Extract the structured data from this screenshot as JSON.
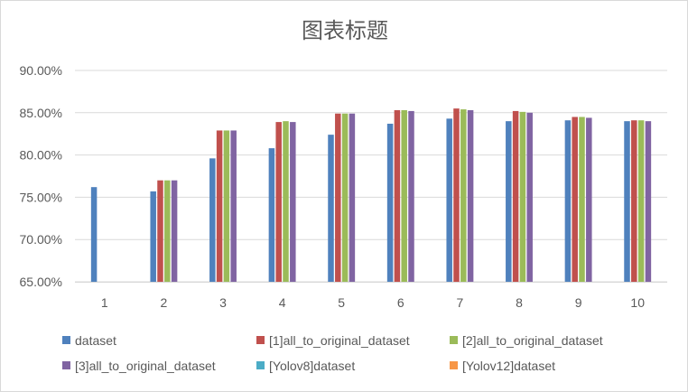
{
  "chart_data": {
    "type": "bar",
    "title": "图表标题",
    "xlabel": "",
    "ylabel": "",
    "categories": [
      "1",
      "2",
      "3",
      "4",
      "5",
      "6",
      "7",
      "8",
      "9",
      "10"
    ],
    "ylim": [
      0.65,
      0.9
    ],
    "yticks": [
      0.65,
      0.7,
      0.75,
      0.8,
      0.85,
      0.9
    ],
    "ytick_labels": [
      "65.00%",
      "70.00%",
      "75.00%",
      "80.00%",
      "85.00%",
      "90.00%"
    ],
    "grid": true,
    "legend_position": "bottom",
    "series": [
      {
        "name": "dataset",
        "color": "#4f81bd",
        "values": [
          0.762,
          0.757,
          0.796,
          0.808,
          0.824,
          0.837,
          0.843,
          0.84,
          0.841,
          0.84
        ]
      },
      {
        "name": "[1]all_to_original_dataset",
        "color": "#c0504d",
        "values": [
          null,
          0.77,
          0.829,
          0.839,
          0.849,
          0.853,
          0.855,
          0.852,
          0.845,
          0.841
        ]
      },
      {
        "name": "[2]all_to_original_dataset",
        "color": "#9bbb59",
        "values": [
          null,
          0.77,
          0.829,
          0.84,
          0.849,
          0.853,
          0.854,
          0.851,
          0.845,
          0.841
        ]
      },
      {
        "name": "[3]all_to_original_dataset",
        "color": "#8064a2",
        "values": [
          null,
          0.77,
          0.829,
          0.839,
          0.849,
          0.852,
          0.853,
          0.85,
          0.844,
          0.84
        ]
      },
      {
        "name": "[Yolov8]dataset",
        "color": "#4bacc6",
        "values": [
          null,
          null,
          null,
          null,
          null,
          null,
          null,
          null,
          null,
          null
        ]
      },
      {
        "name": "[Yolov12]dataset",
        "color": "#f79646",
        "values": [
          null,
          null,
          null,
          null,
          null,
          null,
          null,
          null,
          null,
          null
        ]
      }
    ]
  }
}
